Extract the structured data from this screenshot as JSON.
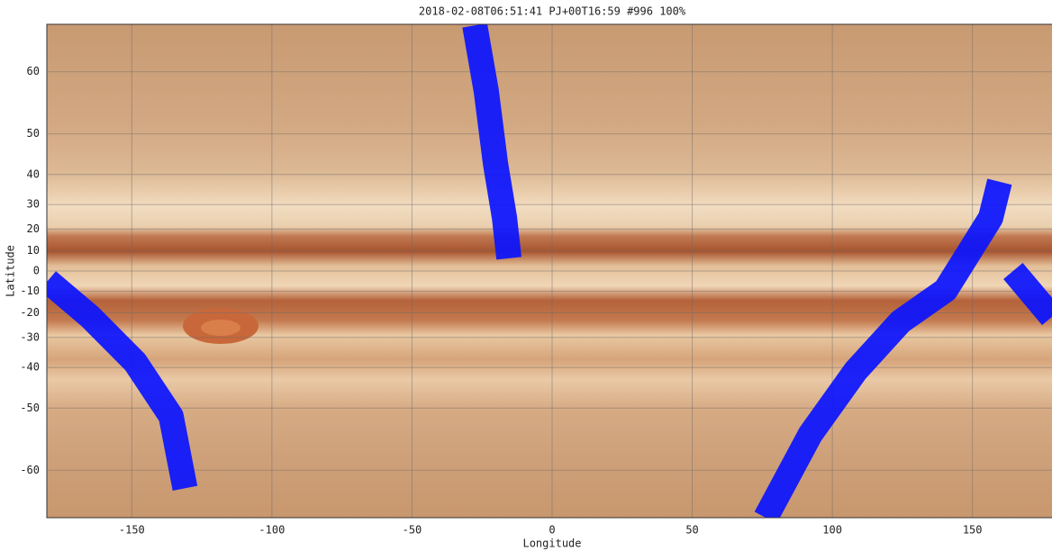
{
  "chart_data": {
    "type": "line",
    "title": "2018-02-08T06:51:41  PJ+00T16:59 #996 100%",
    "xlabel": "Longitude",
    "ylabel": "Latitude",
    "xlim": [
      -180,
      180
    ],
    "ylim": [
      -65,
      65
    ],
    "yscale": "tan",
    "xticks": [
      -150,
      -100,
      -50,
      0,
      50,
      100,
      150
    ],
    "yticks": [
      -60,
      -50,
      -40,
      -30,
      -20,
      -10,
      0,
      10,
      20,
      30,
      40,
      50,
      60
    ],
    "grid": true,
    "series": [
      {
        "color": "#0a14ff",
        "x": [
          -27.6,
          -23.5,
          -20.2,
          -17,
          -15.4
        ],
        "values": [
          64.9,
          57.4,
          43,
          24.8,
          6.3
        ]
      },
      {
        "color": "#0a14ff",
        "x": [
          -180,
          -164.8,
          -148.8,
          -136,
          -131
        ],
        "values": [
          -4.9,
          -21.8,
          -38.4,
          -51.6,
          -62.1
        ]
      },
      {
        "color": "#0a14ff",
        "x": [
          76.2,
          92.2,
          108.3,
          124.4,
          140.4,
          156.5,
          159.7
        ],
        "values": [
          -65,
          -54.8,
          -41,
          -23.7,
          -9.4,
          24.8,
          37.8
        ]
      },
      {
        "color": "#0a14ff",
        "x": [
          164.5,
          178.3
        ],
        "values": [
          0,
          -21.8
        ]
      }
    ]
  }
}
